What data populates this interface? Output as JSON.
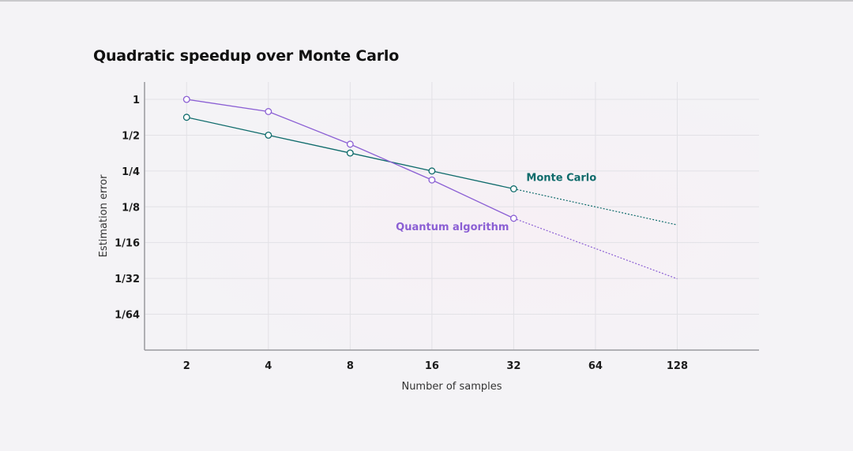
{
  "chart_data": {
    "type": "line",
    "title": "Quadratic speedup over Monte Carlo",
    "xlabel": "Number of samples",
    "ylabel": "Estimation error",
    "x_scale": "log2",
    "y_scale": "log2",
    "x_ticks": [
      {
        "value": 2,
        "label": "2"
      },
      {
        "value": 4,
        "label": "4"
      },
      {
        "value": 8,
        "label": "8"
      },
      {
        "value": 16,
        "label": "16"
      },
      {
        "value": 32,
        "label": "32"
      },
      {
        "value": 64,
        "label": "64"
      },
      {
        "value": 128,
        "label": "128"
      }
    ],
    "y_ticks": [
      {
        "value": 1,
        "label": "1"
      },
      {
        "value": 0.5,
        "label": "1/2"
      },
      {
        "value": 0.25,
        "label": "1/4"
      },
      {
        "value": 0.125,
        "label": "1/8"
      },
      {
        "value": 0.0625,
        "label": "1/16"
      },
      {
        "value": 0.03125,
        "label": "1/32"
      },
      {
        "value": 0.015625,
        "label": "1/64"
      }
    ],
    "xlim": [
      1.4,
      256
    ],
    "ylim": [
      0.0078,
      1.4
    ],
    "grid": true,
    "series": [
      {
        "name": "Monte Carlo",
        "color": "#0e6b6b",
        "x": [
          2,
          4,
          8,
          16,
          32
        ],
        "values": [
          0.707,
          0.5,
          0.354,
          0.25,
          0.177
        ],
        "projection": {
          "x": [
            32,
            128
          ],
          "values": [
            0.177,
            0.088
          ]
        }
      },
      {
        "name": "Quantum algorithm",
        "color": "#8b5fd4",
        "x": [
          2,
          4,
          8,
          16,
          32
        ],
        "values": [
          1,
          0.79,
          0.42,
          0.21,
          0.1
        ],
        "projection": {
          "x": [
            32,
            128
          ],
          "values": [
            0.1,
            0.031
          ]
        }
      }
    ]
  }
}
